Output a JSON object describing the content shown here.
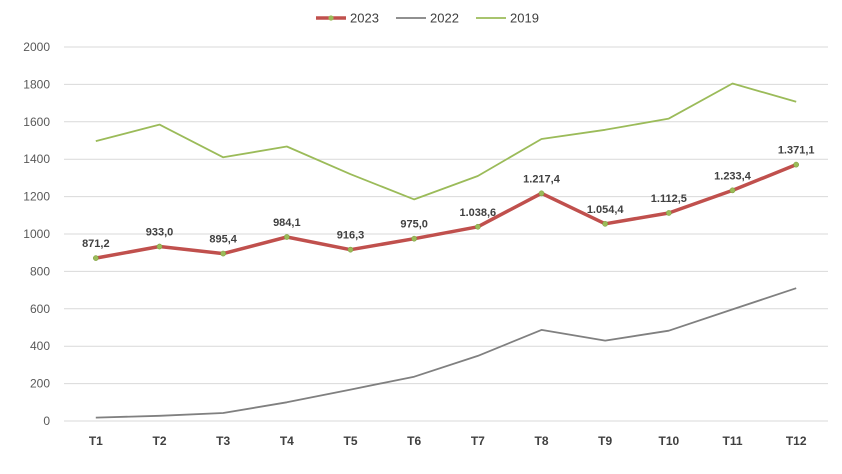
{
  "chart_data": {
    "type": "line",
    "categories": [
      "T1",
      "T2",
      "T3",
      "T4",
      "T5",
      "T6",
      "T7",
      "T8",
      "T9",
      "T10",
      "T11",
      "T12"
    ],
    "ylim": [
      0,
      2000
    ],
    "yticks": [
      0,
      200,
      400,
      600,
      800,
      1000,
      1200,
      1400,
      1600,
      1800,
      2000
    ],
    "grid": true,
    "legend_position": "top",
    "series": [
      {
        "name": "2023",
        "color": "#c0504d",
        "marker_color": "#9bbb59",
        "values": [
          871.2,
          933.0,
          895.4,
          984.1,
          916.3,
          975.0,
          1038.6,
          1217.4,
          1054.4,
          1112.5,
          1233.4,
          1371.1
        ],
        "data_labels": [
          "871,2",
          "933,0",
          "895,4",
          "984,1",
          "916,3",
          "975,0",
          "1.038,6",
          "1.217,4",
          "1.054,4",
          "1.112,5",
          "1.233,4",
          "1.371,1"
        ]
      },
      {
        "name": "2022",
        "color": "#808080",
        "values": [
          18,
          28,
          43,
          100,
          168,
          237,
          348,
          487,
          430,
          483,
          597,
          710
        ]
      },
      {
        "name": "2019",
        "color": "#9bbb59",
        "values": [
          1497,
          1585,
          1410,
          1468,
          1320,
          1185,
          1310,
          1508,
          1557,
          1617,
          1805,
          1707
        ]
      }
    ]
  }
}
